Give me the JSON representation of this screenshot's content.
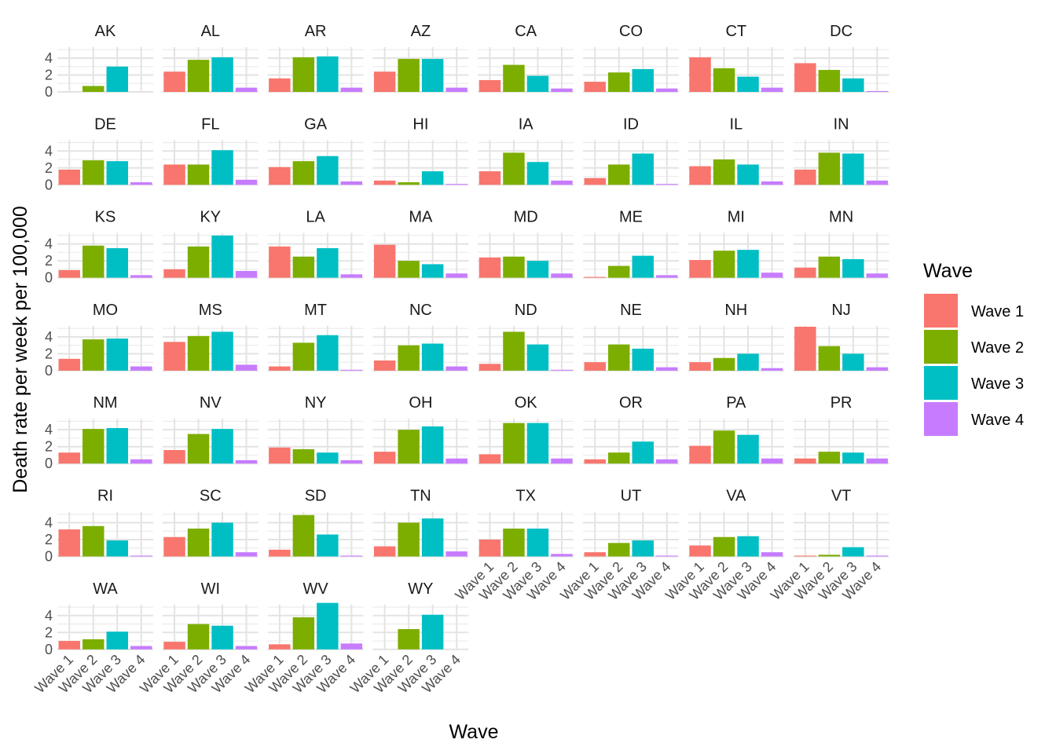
{
  "chart_data": {
    "type": "bar",
    "xlabel": "Wave",
    "ylabel": "Death rate per week per 100,000",
    "ylim": [
      0,
      5.3
    ],
    "y_ticks": [
      0,
      2,
      4
    ],
    "grid": true,
    "legend": {
      "title": "Wave",
      "position": "right",
      "entries": [
        "Wave 1",
        "Wave 2",
        "Wave 3",
        "Wave 4"
      ]
    },
    "categories": [
      "Wave 1",
      "Wave 2",
      "Wave 3",
      "Wave 4"
    ],
    "colors": [
      "#F8766D",
      "#7CAE00",
      "#00BFC4",
      "#C77CFF"
    ],
    "panels": [
      {
        "state": "AK",
        "values": [
          0,
          0.7,
          3.0,
          0
        ]
      },
      {
        "state": "AL",
        "values": [
          2.4,
          3.8,
          4.1,
          0.5
        ]
      },
      {
        "state": "AR",
        "values": [
          1.6,
          4.1,
          4.2,
          0.5
        ]
      },
      {
        "state": "AZ",
        "values": [
          2.4,
          3.9,
          3.9,
          0.5
        ]
      },
      {
        "state": "CA",
        "values": [
          1.4,
          3.2,
          1.9,
          0.4
        ]
      },
      {
        "state": "CO",
        "values": [
          1.2,
          2.3,
          2.7,
          0.4
        ]
      },
      {
        "state": "CT",
        "values": [
          4.1,
          2.8,
          1.8,
          0.5
        ]
      },
      {
        "state": "DC",
        "values": [
          3.4,
          2.6,
          1.6,
          0.1
        ]
      },
      {
        "state": "DE",
        "values": [
          1.8,
          2.9,
          2.8,
          0.3
        ]
      },
      {
        "state": "FL",
        "values": [
          2.4,
          2.4,
          4.1,
          0.6
        ]
      },
      {
        "state": "GA",
        "values": [
          2.1,
          2.8,
          3.4,
          0.4
        ]
      },
      {
        "state": "HI",
        "values": [
          0.5,
          0.3,
          1.6,
          0.1
        ]
      },
      {
        "state": "IA",
        "values": [
          1.6,
          3.8,
          2.7,
          0.5
        ]
      },
      {
        "state": "ID",
        "values": [
          0.8,
          2.4,
          3.7,
          0.1
        ]
      },
      {
        "state": "IL",
        "values": [
          2.2,
          3.0,
          2.4,
          0.4
        ]
      },
      {
        "state": "IN",
        "values": [
          1.8,
          3.8,
          3.7,
          0.5
        ]
      },
      {
        "state": "KS",
        "values": [
          0.9,
          3.8,
          3.5,
          0.3
        ]
      },
      {
        "state": "KY",
        "values": [
          1.0,
          3.7,
          5.0,
          0.8
        ]
      },
      {
        "state": "LA",
        "values": [
          3.7,
          2.5,
          3.5,
          0.4
        ]
      },
      {
        "state": "MA",
        "values": [
          3.9,
          2.0,
          1.6,
          0.5
        ]
      },
      {
        "state": "MD",
        "values": [
          2.4,
          2.5,
          2.0,
          0.5
        ]
      },
      {
        "state": "ME",
        "values": [
          0.1,
          1.4,
          2.6,
          0.3
        ]
      },
      {
        "state": "MI",
        "values": [
          2.1,
          3.2,
          3.3,
          0.6
        ]
      },
      {
        "state": "MN",
        "values": [
          1.2,
          2.5,
          2.2,
          0.5
        ]
      },
      {
        "state": "MO",
        "values": [
          1.4,
          3.7,
          3.8,
          0.5
        ]
      },
      {
        "state": "MS",
        "values": [
          3.4,
          4.1,
          4.6,
          0.7
        ]
      },
      {
        "state": "MT",
        "values": [
          0.5,
          3.3,
          4.2,
          0.1
        ]
      },
      {
        "state": "NC",
        "values": [
          1.2,
          3.0,
          3.2,
          0.5
        ]
      },
      {
        "state": "ND",
        "values": [
          0.8,
          4.6,
          3.1,
          0.1
        ]
      },
      {
        "state": "NE",
        "values": [
          1.0,
          3.1,
          2.6,
          0.4
        ]
      },
      {
        "state": "NH",
        "values": [
          1.0,
          1.5,
          2.0,
          0.3
        ]
      },
      {
        "state": "NJ",
        "values": [
          5.2,
          2.9,
          2.0,
          0.4
        ]
      },
      {
        "state": "NM",
        "values": [
          1.3,
          4.1,
          4.2,
          0.5
        ]
      },
      {
        "state": "NV",
        "values": [
          1.6,
          3.5,
          4.1,
          0.4
        ]
      },
      {
        "state": "NY",
        "values": [
          1.9,
          1.7,
          1.3,
          0.4
        ]
      },
      {
        "state": "OH",
        "values": [
          1.4,
          4.0,
          4.4,
          0.6
        ]
      },
      {
        "state": "OK",
        "values": [
          1.1,
          4.8,
          4.8,
          0.6
        ]
      },
      {
        "state": "OR",
        "values": [
          0.5,
          1.3,
          2.6,
          0.5
        ]
      },
      {
        "state": "PA",
        "values": [
          2.1,
          3.9,
          3.4,
          0.6
        ]
      },
      {
        "state": "PR",
        "values": [
          0.6,
          1.4,
          1.3,
          0.6
        ]
      },
      {
        "state": "RI",
        "values": [
          3.2,
          3.6,
          1.9,
          0.1
        ]
      },
      {
        "state": "SC",
        "values": [
          2.3,
          3.3,
          4.0,
          0.5
        ]
      },
      {
        "state": "SD",
        "values": [
          0.8,
          4.9,
          2.6,
          0.1
        ]
      },
      {
        "state": "TN",
        "values": [
          1.2,
          4.0,
          4.5,
          0.6
        ]
      },
      {
        "state": "TX",
        "values": [
          2.0,
          3.3,
          3.3,
          0.3
        ]
      },
      {
        "state": "UT",
        "values": [
          0.5,
          1.6,
          1.9,
          0.1
        ]
      },
      {
        "state": "VA",
        "values": [
          1.3,
          2.3,
          2.4,
          0.5
        ]
      },
      {
        "state": "VT",
        "values": [
          0.1,
          0.2,
          1.1,
          0.1
        ]
      },
      {
        "state": "WA",
        "values": [
          1.0,
          1.2,
          2.1,
          0.4
        ]
      },
      {
        "state": "WI",
        "values": [
          0.9,
          3.0,
          2.8,
          0.4
        ]
      },
      {
        "state": "WV",
        "values": [
          0.6,
          3.8,
          5.5,
          0.7
        ]
      },
      {
        "state": "WY",
        "values": [
          0,
          2.4,
          4.1,
          0
        ]
      }
    ]
  }
}
